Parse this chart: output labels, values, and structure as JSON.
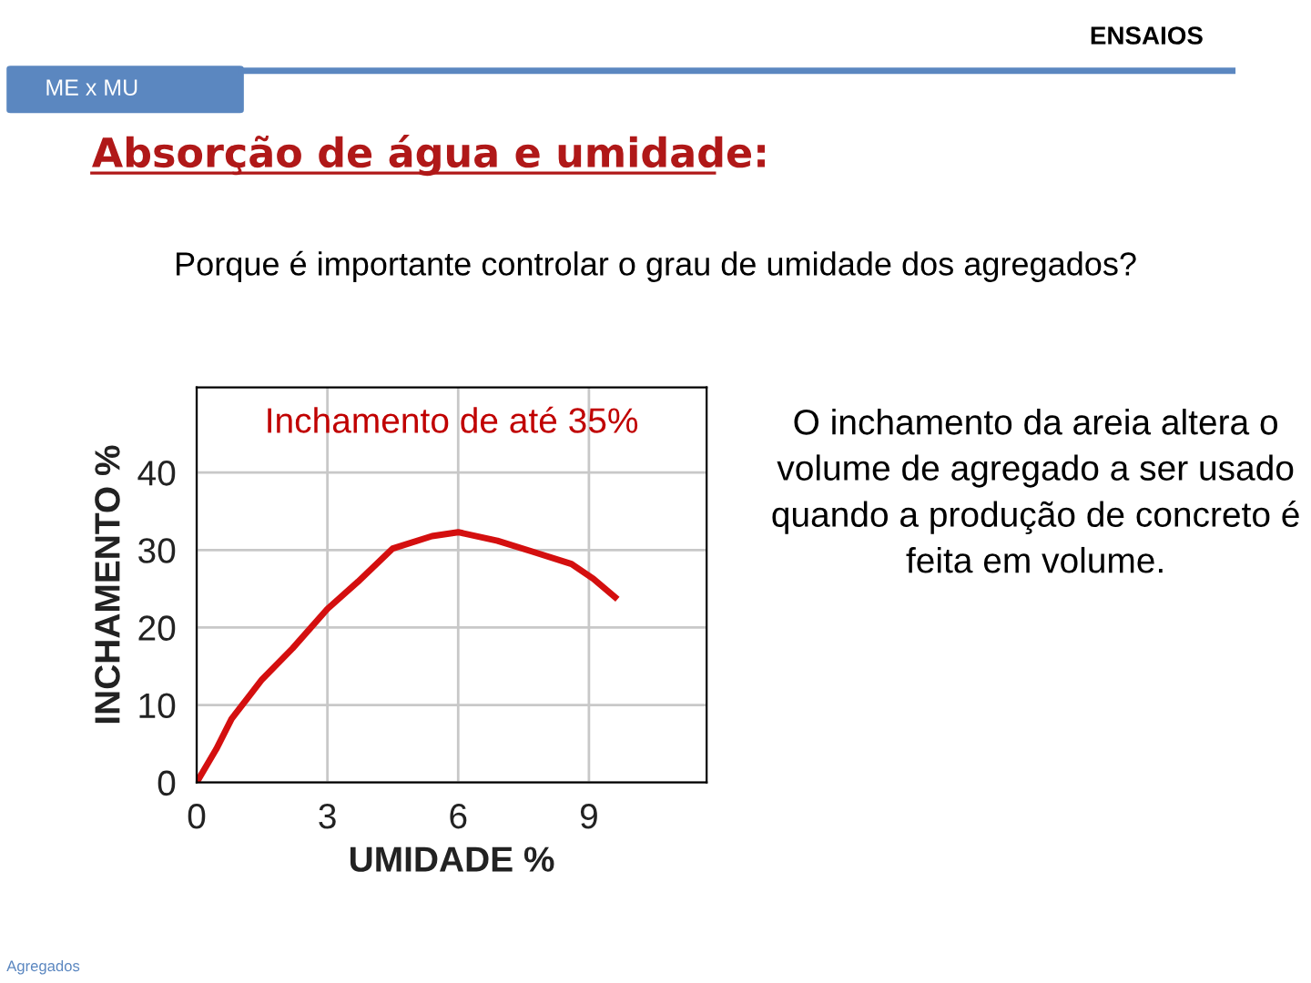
{
  "chart_data": {
    "type": "line",
    "title": "Absorção de água e umidade:",
    "subtitle": "Porque é importante controlar o grau de umidade dos agregados?",
    "xlabel": "UMIDADE %",
    "ylabel": "INCHAMENTO %",
    "annotations": [
      "ENSAIOS",
      "ME x MU",
      "Inchamento de até 35%",
      "O inchamento da areia altera o volume de agregado a ser usado quando a produção de concreto é feita em volume.",
      "Agregados"
    ],
    "series": [
      {
        "color": "#d40f0f",
        "x": [
          0,
          0.45,
          0.8,
          1.5,
          2.2,
          3.0,
          3.7,
          4.5,
          5.4,
          6.0,
          6.9,
          7.7,
          8.6,
          9.1,
          9.6
        ],
        "values": [
          0,
          4.3,
          8.2,
          13.3,
          17.3,
          22.4,
          25.9,
          30.2,
          31.8,
          32.3,
          31.2,
          29.8,
          28.2,
          26.3,
          23.9
        ]
      }
    ],
    "xlim": [
      0,
      11.7
    ],
    "ylim": [
      0,
      51
    ],
    "xticks": [
      0,
      3,
      6,
      9
    ],
    "yticks": [
      0,
      10,
      20,
      30,
      40
    ],
    "grid": true,
    "marker": "none",
    "line_style": "solid"
  }
}
